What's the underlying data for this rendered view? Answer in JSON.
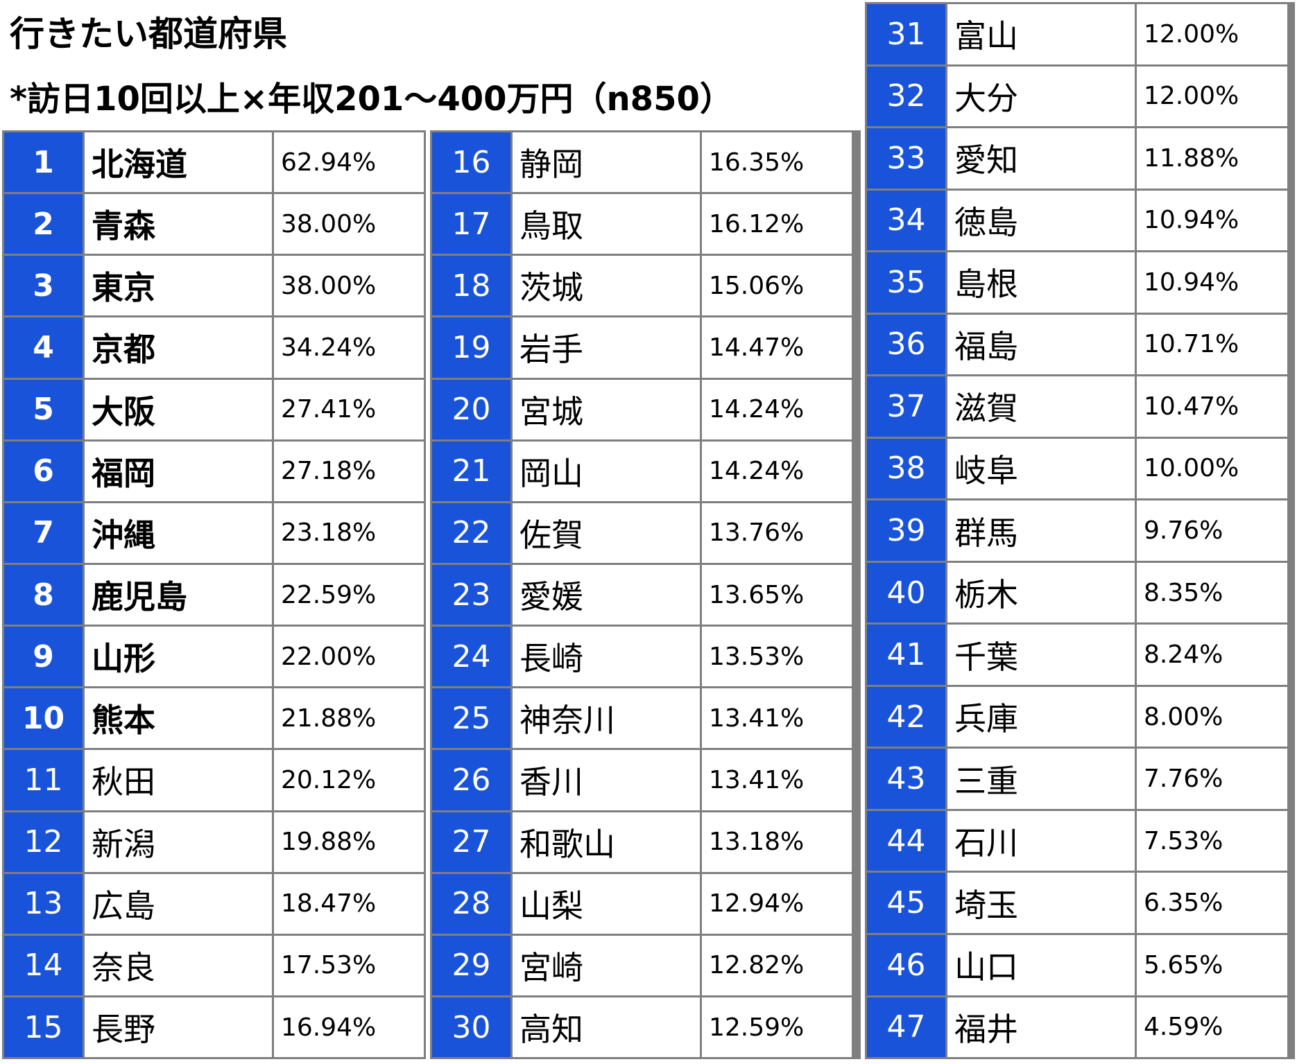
{
  "title": "行きたい都道府県",
  "subtitle": "*訪日10回以上×年収201～400万円（n850）",
  "colors": {
    "rank_bg": "#1953d9",
    "grid": "#7f7f7f",
    "cell_bg": "#ffffff",
    "rank_text": "#ffffff"
  },
  "rows": [
    {
      "rank": "1",
      "name": "北海道",
      "pct": "62.94%"
    },
    {
      "rank": "2",
      "name": "青森",
      "pct": "38.00%"
    },
    {
      "rank": "3",
      "name": "東京",
      "pct": "38.00%"
    },
    {
      "rank": "4",
      "name": "京都",
      "pct": "34.24%"
    },
    {
      "rank": "5",
      "name": "大阪",
      "pct": "27.41%"
    },
    {
      "rank": "6",
      "name": "福岡",
      "pct": "27.18%"
    },
    {
      "rank": "7",
      "name": "沖縄",
      "pct": "23.18%"
    },
    {
      "rank": "8",
      "name": "鹿児島",
      "pct": "22.59%"
    },
    {
      "rank": "9",
      "name": "山形",
      "pct": "22.00%"
    },
    {
      "rank": "10",
      "name": "熊本",
      "pct": "21.88%"
    },
    {
      "rank": "11",
      "name": "秋田",
      "pct": "20.12%"
    },
    {
      "rank": "12",
      "name": "新潟",
      "pct": "19.88%"
    },
    {
      "rank": "13",
      "name": "広島",
      "pct": "18.47%"
    },
    {
      "rank": "14",
      "name": "奈良",
      "pct": "17.53%"
    },
    {
      "rank": "15",
      "name": "長野",
      "pct": "16.94%"
    },
    {
      "rank": "16",
      "name": "静岡",
      "pct": "16.35%"
    },
    {
      "rank": "17",
      "name": "鳥取",
      "pct": "16.12%"
    },
    {
      "rank": "18",
      "name": "茨城",
      "pct": "15.06%"
    },
    {
      "rank": "19",
      "name": "岩手",
      "pct": "14.47%"
    },
    {
      "rank": "20",
      "name": "宮城",
      "pct": "14.24%"
    },
    {
      "rank": "21",
      "name": "岡山",
      "pct": "14.24%"
    },
    {
      "rank": "22",
      "name": "佐賀",
      "pct": "13.76%"
    },
    {
      "rank": "23",
      "name": "愛媛",
      "pct": "13.65%"
    },
    {
      "rank": "24",
      "name": "長崎",
      "pct": "13.53%"
    },
    {
      "rank": "25",
      "name": "神奈川",
      "pct": "13.41%"
    },
    {
      "rank": "26",
      "name": "香川",
      "pct": "13.41%"
    },
    {
      "rank": "27",
      "name": "和歌山",
      "pct": "13.18%"
    },
    {
      "rank": "28",
      "name": "山梨",
      "pct": "12.94%"
    },
    {
      "rank": "29",
      "name": "宮崎",
      "pct": "12.82%"
    },
    {
      "rank": "30",
      "name": "高知",
      "pct": "12.59%"
    },
    {
      "rank": "31",
      "name": "富山",
      "pct": "12.00%"
    },
    {
      "rank": "32",
      "name": "大分",
      "pct": "12.00%"
    },
    {
      "rank": "33",
      "name": "愛知",
      "pct": "11.88%"
    },
    {
      "rank": "34",
      "name": "徳島",
      "pct": "10.94%"
    },
    {
      "rank": "35",
      "name": "島根",
      "pct": "10.94%"
    },
    {
      "rank": "36",
      "name": "福島",
      "pct": "10.71%"
    },
    {
      "rank": "37",
      "name": "滋賀",
      "pct": "10.47%"
    },
    {
      "rank": "38",
      "name": "岐阜",
      "pct": "10.00%"
    },
    {
      "rank": "39",
      "name": "群馬",
      "pct": "9.76%"
    },
    {
      "rank": "40",
      "name": "栃木",
      "pct": "8.35%"
    },
    {
      "rank": "41",
      "name": "千葉",
      "pct": "8.24%"
    },
    {
      "rank": "42",
      "name": "兵庫",
      "pct": "8.00%"
    },
    {
      "rank": "43",
      "name": "三重",
      "pct": "7.76%"
    },
    {
      "rank": "44",
      "name": "石川",
      "pct": "7.53%"
    },
    {
      "rank": "45",
      "name": "埼玉",
      "pct": "6.35%"
    },
    {
      "rank": "46",
      "name": "山口",
      "pct": "5.65%"
    },
    {
      "rank": "47",
      "name": "福井",
      "pct": "4.59%"
    }
  ]
}
